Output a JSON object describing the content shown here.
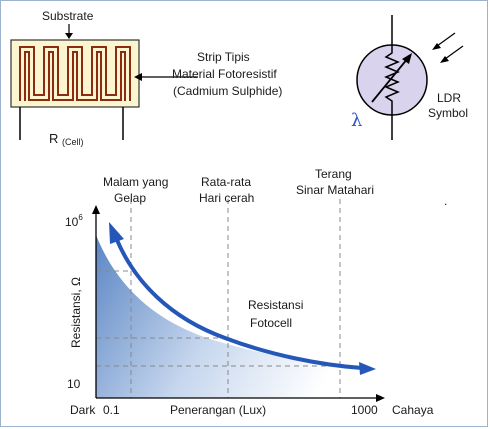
{
  "ldr_construction": {
    "substrate_label": "Substrate",
    "strip_label_line1": "Strip Tipis",
    "strip_label_line2": "Material Fotoresistif",
    "strip_label_line3": "(Cadmium Sulphide)",
    "resistor_label": "R",
    "resistor_subscript": "(Cell)",
    "colors": {
      "substrate_fill": "#fbf6cf",
      "strip": "#8b2b12"
    }
  },
  "ldr_symbol": {
    "label_line1": "LDR",
    "label_line2": "Symbol",
    "lambda": "λ",
    "colors": {
      "body_fill": "#d9d3ee",
      "lambda": "#2a53c8"
    }
  },
  "graph": {
    "top_labels": [
      {
        "line1": "Malam yang",
        "line2": "Gelap"
      },
      {
        "line1": "Rata-rata",
        "line2": "Hari cerah"
      },
      {
        "line1": "Terang",
        "line2": "Sinar Matahari"
      }
    ],
    "y_axis_label": "Resistansi, Ω",
    "y_tick_top_base": "10",
    "y_tick_top_exp": "6",
    "y_tick_bottom": "10",
    "x_start_label": "Dark",
    "x_tick_left": "0.1",
    "x_axis_label": "Penerangan (Lux)",
    "x_tick_right": "1000",
    "x_end_label": "Cahaya",
    "curve_label_line1": "Resistansi",
    "curve_label_line2": "Fotocell",
    "colors": {
      "curve": "#2457b8",
      "gradient_dark": "#5b86c4",
      "gradient_light": "#ffffff"
    }
  }
}
